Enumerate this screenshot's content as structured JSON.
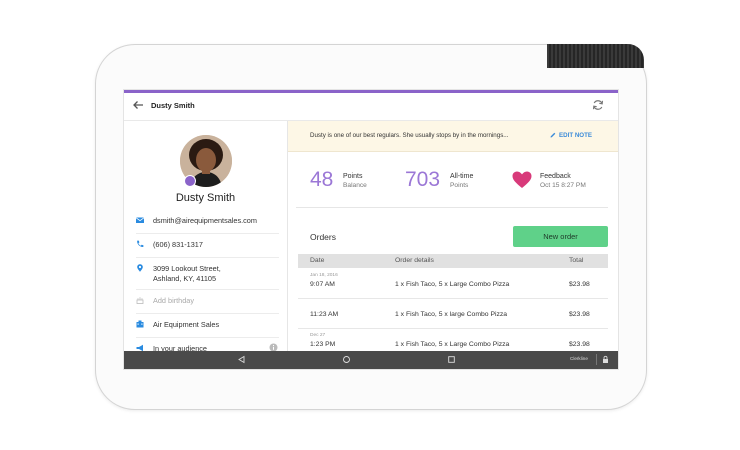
{
  "header": {
    "title": "Dusty Smith"
  },
  "icons": {
    "back": "arrow-left-icon",
    "sync": "sync-icon",
    "email": "email-icon",
    "phone": "phone-icon",
    "location": "location-pin-icon",
    "birthday": "cake-icon",
    "company": "building-icon",
    "audience": "megaphone-icon",
    "heart": "heart-icon",
    "edit": "pencil-icon"
  },
  "colors": {
    "accent": "#8a63c9",
    "stat": "#9b77d6",
    "button": "#5fd189",
    "link": "#3b8bd9",
    "heart": "#d83a7a"
  },
  "customer": {
    "name": "Dusty Smith",
    "email": "dsmith@airequipmentsales.com",
    "phone": "(606) 831-1317",
    "address_line1": "3099 Lookout Street,",
    "address_line2": "Ashland, KY, 41105",
    "birthday_placeholder": "Add birthday",
    "company": "Air Equipment Sales",
    "audience": "In your audience"
  },
  "note": {
    "text": "Dusty is one of our best regulars. She usually stops by in the mornings...",
    "edit_label": "EDIT NOTE"
  },
  "stats": {
    "points": {
      "value": "48",
      "label": "Points",
      "sub": "Balance"
    },
    "alltime": {
      "value": "703",
      "label": "All-time",
      "sub": "Points"
    },
    "feedback": {
      "label": "Feedback",
      "sub": "Oct 15 8:27 PM"
    }
  },
  "orders": {
    "title": "Orders",
    "new_order_label": "New order",
    "columns": {
      "date": "Date",
      "details": "Order details",
      "total": "Total"
    },
    "rows": [
      {
        "small_date": "Jan 18, 2016",
        "time": "9:07 AM",
        "details": "1 x Fish Taco, 5 x Large Combo Pizza",
        "total": "$23.98"
      },
      {
        "small_date": "",
        "time": "11:23 AM",
        "details": "1 x Fish Taco, 5 x large Combo Pizza",
        "total": "$23.98"
      },
      {
        "small_date": "Dec 27",
        "time": "1:23 PM",
        "details": "1 x Fish Taco, 5 x Large Combo Pizza",
        "total": "$23.98"
      }
    ]
  },
  "navbar": {
    "status_text": "Clerkline"
  }
}
